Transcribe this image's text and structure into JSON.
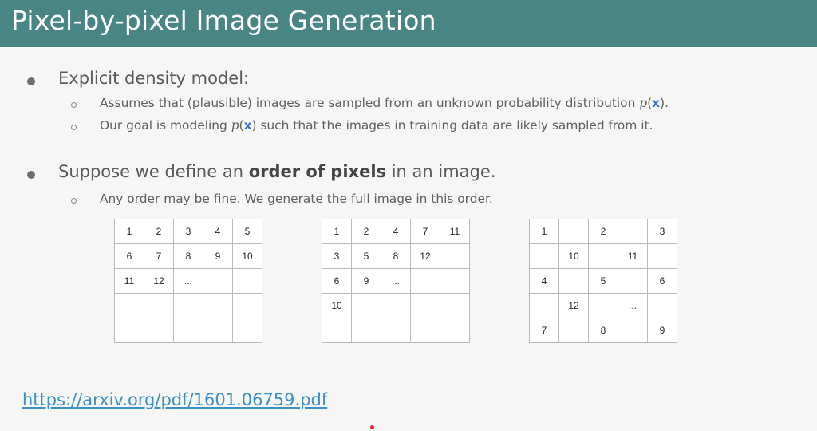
{
  "slide": {
    "title": "Pixel-by-pixel Image Generation",
    "bullets": [
      {
        "label": "Explicit density model:",
        "subitems": [
          {
            "pre": "Assumes that (plausible) images are sampled from an unknown probability distribution ",
            "p": "p",
            "x": "x",
            "post": "."
          },
          {
            "pre": "Our goal is modeling ",
            "p": "p",
            "x": "x",
            "post": " such that the images in training data are likely sampled from it."
          }
        ]
      },
      {
        "pre": "Suppose we define an ",
        "bold": "order of pixels",
        "post": " in an image.",
        "subitems": [
          {
            "text": "Any order may be fine. We generate the full image in this order."
          }
        ]
      }
    ],
    "grids": [
      [
        [
          "1",
          "2",
          "3",
          "4",
          "5"
        ],
        [
          "6",
          "7",
          "8",
          "9",
          "10"
        ],
        [
          "11",
          "12",
          "...",
          "",
          ""
        ],
        [
          "",
          "",
          "",
          "",
          ""
        ],
        [
          "",
          "",
          "",
          "",
          ""
        ]
      ],
      [
        [
          "1",
          "2",
          "4",
          "7",
          "11"
        ],
        [
          "3",
          "5",
          "8",
          "12",
          ""
        ],
        [
          "6",
          "9",
          "...",
          "",
          ""
        ],
        [
          "10",
          "",
          "",
          "",
          ""
        ],
        [
          "",
          "",
          "",
          "",
          ""
        ]
      ],
      [
        [
          "1",
          "",
          "2",
          "",
          "3"
        ],
        [
          "",
          "10",
          "",
          "11",
          ""
        ],
        [
          "4",
          "",
          "5",
          "",
          "6"
        ],
        [
          "",
          "12",
          "",
          "...",
          ""
        ],
        [
          "7",
          "",
          "8",
          "",
          "9"
        ]
      ]
    ],
    "link": "https://arxiv.org/pdf/1601.06759.pdf"
  }
}
